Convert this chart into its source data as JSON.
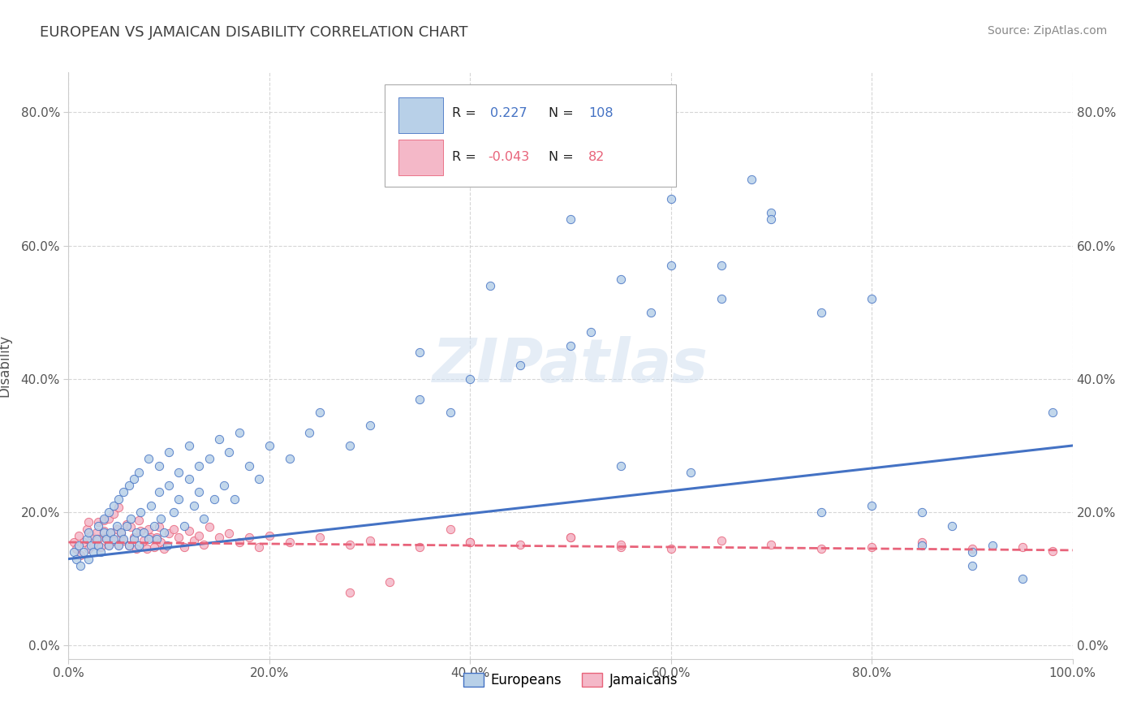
{
  "title": "EUROPEAN VS JAMAICAN DISABILITY CORRELATION CHART",
  "source": "Source: ZipAtlas.com",
  "ylabel": "Disability",
  "xlim": [
    0.0,
    1.0
  ],
  "ylim": [
    -0.02,
    0.86
  ],
  "x_ticks": [
    0.0,
    0.2,
    0.4,
    0.6,
    0.8,
    1.0
  ],
  "x_tick_labels": [
    "0.0%",
    "20.0%",
    "40.0%",
    "60.0%",
    "80.0%",
    "100.0%"
  ],
  "y_ticks": [
    0.0,
    0.2,
    0.4,
    0.6,
    0.8
  ],
  "y_tick_labels": [
    "0.0%",
    "20.0%",
    "40.0%",
    "60.0%",
    "80.0%"
  ],
  "R_european": 0.227,
  "N_european": 108,
  "R_jamaican": -0.043,
  "N_jamaican": 82,
  "european_color": "#b8d0e8",
  "jamaican_color": "#f4b8c8",
  "european_line_color": "#4472c4",
  "jamaican_line_color": "#e8637a",
  "grid_color": "#cccccc",
  "background_color": "#ffffff",
  "watermark_text": "ZIPatlas",
  "legend_label_european": "Europeans",
  "legend_label_jamaican": "Jamaicans",
  "european_scatter_x": [
    0.005,
    0.008,
    0.01,
    0.012,
    0.015,
    0.018,
    0.02,
    0.02,
    0.022,
    0.025,
    0.028,
    0.03,
    0.03,
    0.032,
    0.035,
    0.035,
    0.038,
    0.04,
    0.04,
    0.042,
    0.045,
    0.045,
    0.048,
    0.05,
    0.05,
    0.052,
    0.055,
    0.055,
    0.058,
    0.06,
    0.06,
    0.062,
    0.065,
    0.065,
    0.068,
    0.07,
    0.07,
    0.072,
    0.075,
    0.08,
    0.08,
    0.082,
    0.085,
    0.088,
    0.09,
    0.09,
    0.092,
    0.095,
    0.098,
    0.1,
    0.1,
    0.105,
    0.11,
    0.11,
    0.115,
    0.12,
    0.12,
    0.125,
    0.13,
    0.13,
    0.135,
    0.14,
    0.145,
    0.15,
    0.155,
    0.16,
    0.165,
    0.17,
    0.18,
    0.19,
    0.2,
    0.22,
    0.24,
    0.25,
    0.28,
    0.3,
    0.35,
    0.38,
    0.4,
    0.45,
    0.5,
    0.52,
    0.55,
    0.58,
    0.6,
    0.65,
    0.68,
    0.7,
    0.75,
    0.8,
    0.85,
    0.88,
    0.9,
    0.92,
    0.95,
    0.98,
    0.5,
    0.42,
    0.35,
    0.6,
    0.65,
    0.7,
    0.75,
    0.8,
    0.85,
    0.9,
    0.55,
    0.62
  ],
  "european_scatter_y": [
    0.14,
    0.13,
    0.15,
    0.12,
    0.14,
    0.16,
    0.13,
    0.17,
    0.15,
    0.14,
    0.16,
    0.15,
    0.18,
    0.14,
    0.17,
    0.19,
    0.16,
    0.15,
    0.2,
    0.17,
    0.16,
    0.21,
    0.18,
    0.15,
    0.22,
    0.17,
    0.16,
    0.23,
    0.18,
    0.15,
    0.24,
    0.19,
    0.16,
    0.25,
    0.17,
    0.15,
    0.26,
    0.2,
    0.17,
    0.16,
    0.28,
    0.21,
    0.18,
    0.16,
    0.27,
    0.23,
    0.19,
    0.17,
    0.15,
    0.24,
    0.29,
    0.2,
    0.26,
    0.22,
    0.18,
    0.25,
    0.3,
    0.21,
    0.27,
    0.23,
    0.19,
    0.28,
    0.22,
    0.31,
    0.24,
    0.29,
    0.22,
    0.32,
    0.27,
    0.25,
    0.3,
    0.28,
    0.32,
    0.35,
    0.3,
    0.33,
    0.37,
    0.35,
    0.4,
    0.42,
    0.45,
    0.47,
    0.55,
    0.5,
    0.57,
    0.52,
    0.7,
    0.65,
    0.5,
    0.52,
    0.2,
    0.18,
    0.12,
    0.15,
    0.1,
    0.35,
    0.64,
    0.54,
    0.44,
    0.67,
    0.57,
    0.64,
    0.2,
    0.21,
    0.15,
    0.14,
    0.27,
    0.26
  ],
  "jamaican_scatter_x": [
    0.005,
    0.008,
    0.01,
    0.012,
    0.015,
    0.018,
    0.02,
    0.02,
    0.022,
    0.025,
    0.028,
    0.03,
    0.03,
    0.032,
    0.035,
    0.035,
    0.038,
    0.04,
    0.04,
    0.042,
    0.045,
    0.045,
    0.048,
    0.05,
    0.05,
    0.052,
    0.055,
    0.058,
    0.06,
    0.062,
    0.065,
    0.068,
    0.07,
    0.072,
    0.075,
    0.078,
    0.08,
    0.082,
    0.085,
    0.088,
    0.09,
    0.092,
    0.095,
    0.1,
    0.105,
    0.11,
    0.115,
    0.12,
    0.125,
    0.13,
    0.135,
    0.14,
    0.15,
    0.16,
    0.17,
    0.18,
    0.19,
    0.2,
    0.22,
    0.25,
    0.28,
    0.3,
    0.35,
    0.4,
    0.45,
    0.5,
    0.55,
    0.6,
    0.65,
    0.7,
    0.75,
    0.8,
    0.85,
    0.9,
    0.95,
    0.98,
    0.4,
    0.5,
    0.55,
    0.28,
    0.32,
    0.38
  ],
  "jamaican_scatter_y": [
    0.155,
    0.145,
    0.165,
    0.135,
    0.155,
    0.175,
    0.145,
    0.185,
    0.165,
    0.15,
    0.17,
    0.16,
    0.185,
    0.148,
    0.172,
    0.188,
    0.162,
    0.152,
    0.19,
    0.168,
    0.158,
    0.198,
    0.175,
    0.152,
    0.208,
    0.168,
    0.158,
    0.182,
    0.15,
    0.178,
    0.162,
    0.145,
    0.188,
    0.172,
    0.158,
    0.145,
    0.175,
    0.162,
    0.148,
    0.162,
    0.178,
    0.155,
    0.145,
    0.168,
    0.175,
    0.162,
    0.148,
    0.172,
    0.158,
    0.165,
    0.152,
    0.178,
    0.162,
    0.168,
    0.155,
    0.162,
    0.148,
    0.165,
    0.155,
    0.162,
    0.152,
    0.158,
    0.148,
    0.155,
    0.152,
    0.162,
    0.148,
    0.145,
    0.158,
    0.152,
    0.145,
    0.148,
    0.155,
    0.145,
    0.148,
    0.142,
    0.155,
    0.162,
    0.152,
    0.08,
    0.095,
    0.175
  ]
}
